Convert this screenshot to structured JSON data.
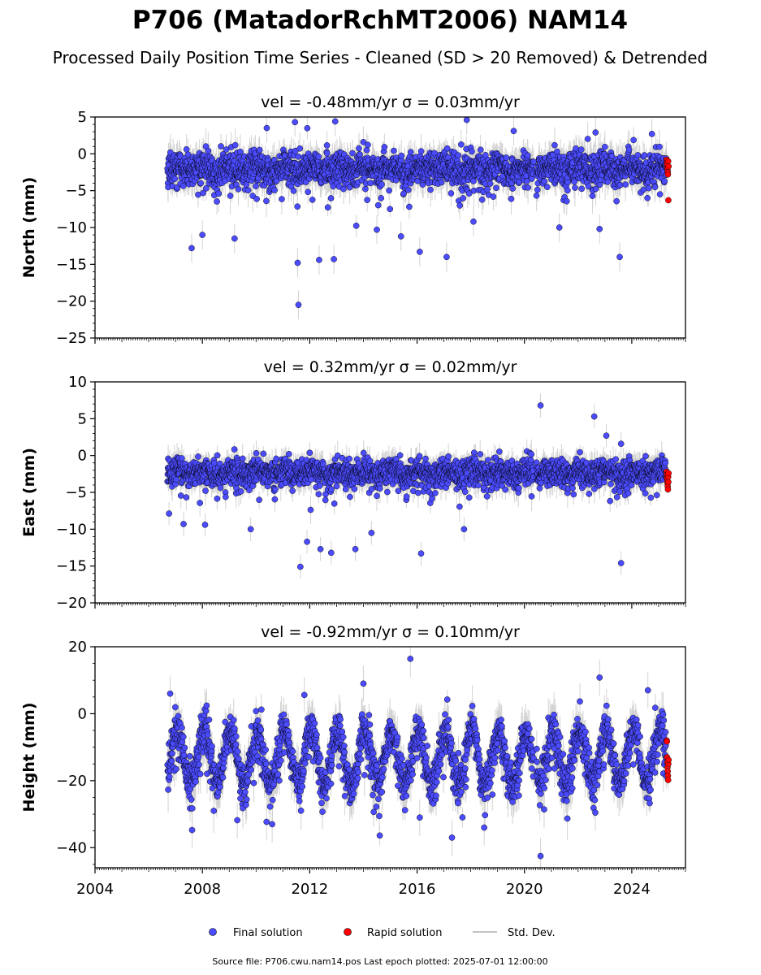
{
  "title": "P706 (MatadorRchMT2006) NAM14",
  "subtitle": "Processed Daily Position Time Series - Cleaned (SD > 20 Removed) & Detrended",
  "legend": {
    "final": "Final solution",
    "rapid": "Rapid solution",
    "std": "Std. Dev."
  },
  "source": "Source file: P706.cwu.nam14.pos  Last epoch plotted: 2025-07-01 12:00:00",
  "colors": {
    "final": "#4b4bff",
    "rapid": "#ff0000",
    "std": "#808080",
    "edge": "#000000"
  },
  "chart_data": [
    {
      "type": "scatter",
      "component": "north",
      "title": "vel = -0.48mm/yr   σ = 0.03mm/yr",
      "ylabel": "North (mm)",
      "xlim": [
        2004.0,
        2026.0
      ],
      "ylim": [
        -25,
        5
      ],
      "yticks": [
        5,
        0,
        -5,
        -10,
        -15,
        -20,
        -25
      ],
      "xticks": [
        2004,
        2008,
        2012,
        2016,
        2020,
        2024
      ],
      "data_start": 2006.7,
      "gap": [
        2020.35,
        2020.45
      ],
      "final_end": 2025.3,
      "rapid_range": [
        2025.3,
        2025.5
      ],
      "baseline": -2.0,
      "scatter_sd": 1.1,
      "seasonal_amplitude": 0.4,
      "outliers": [
        {
          "x": 2011.58,
          "y": -20.5
        },
        {
          "x": 2011.55,
          "y": -14.8
        },
        {
          "x": 2012.35,
          "y": -14.4
        },
        {
          "x": 2012.9,
          "y": -14.3
        },
        {
          "x": 2007.6,
          "y": -12.8
        },
        {
          "x": 2023.55,
          "y": -14.0
        },
        {
          "x": 2017.1,
          "y": -14.0
        },
        {
          "x": 2016.1,
          "y": -13.3
        },
        {
          "x": 2009.2,
          "y": -11.5
        },
        {
          "x": 2011.45,
          "y": 4.3
        },
        {
          "x": 2012.95,
          "y": 4.4
        },
        {
          "x": 2017.85,
          "y": 4.6
        },
        {
          "x": 2010.4,
          "y": 3.5
        },
        {
          "x": 2019.6,
          "y": 3.1
        },
        {
          "x": 2022.65,
          "y": 2.9
        },
        {
          "x": 2024.75,
          "y": 2.7
        },
        {
          "x": 2014.5,
          "y": -10.3
        },
        {
          "x": 2015.4,
          "y": -11.2
        },
        {
          "x": 2018.1,
          "y": -9.2
        },
        {
          "x": 2021.3,
          "y": -10.0
        },
        {
          "x": 2022.8,
          "y": -10.2
        },
        {
          "x": 2008.0,
          "y": -11.0
        }
      ],
      "rapid_values": [
        -0.8,
        -1.2,
        -1.5,
        -1.9,
        -2.2,
        -2.5,
        -2.8,
        -1.0,
        -6.3,
        -1.7
      ]
    },
    {
      "type": "scatter",
      "component": "east",
      "title": "vel = 0.32mm/yr   σ = 0.02mm/yr",
      "ylabel": "East (mm)",
      "xlim": [
        2004.0,
        2026.0
      ],
      "ylim": [
        -20,
        10
      ],
      "yticks": [
        10,
        5,
        0,
        -5,
        -10,
        -15,
        -20
      ],
      "xticks": [
        2004,
        2008,
        2012,
        2016,
        2020,
        2024
      ],
      "data_start": 2006.7,
      "gap": [
        2020.35,
        2020.45
      ],
      "final_end": 2025.3,
      "rapid_range": [
        2025.3,
        2025.5
      ],
      "baseline": -2.3,
      "scatter_sd": 0.9,
      "seasonal_amplitude": 0.3,
      "outliers": [
        {
          "x": 2020.6,
          "y": 6.8
        },
        {
          "x": 2022.6,
          "y": 5.3
        },
        {
          "x": 2023.6,
          "y": -14.6
        },
        {
          "x": 2011.65,
          "y": -15.1
        },
        {
          "x": 2016.15,
          "y": -13.3
        },
        {
          "x": 2013.7,
          "y": -12.7
        },
        {
          "x": 2012.4,
          "y": -12.7
        },
        {
          "x": 2012.8,
          "y": -13.2
        },
        {
          "x": 2011.9,
          "y": -11.7
        },
        {
          "x": 2009.8,
          "y": -10.0
        },
        {
          "x": 2017.75,
          "y": -10.0
        },
        {
          "x": 2014.3,
          "y": -10.5
        },
        {
          "x": 2023.05,
          "y": 2.7
        },
        {
          "x": 2007.3,
          "y": -9.3
        },
        {
          "x": 2023.6,
          "y": 1.6
        },
        {
          "x": 2008.1,
          "y": -9.4
        }
      ],
      "rapid_values": [
        -2.2,
        -2.6,
        -3.0,
        -3.4,
        -3.8,
        -4.2,
        -4.6,
        -2.9,
        -3.6,
        -2.4
      ]
    },
    {
      "type": "scatter",
      "component": "height",
      "title": "vel = -0.92mm/yr   σ = 0.10mm/yr",
      "ylabel": "Height (mm)",
      "xlim": [
        2004.0,
        2026.0
      ],
      "ylim": [
        -46,
        20
      ],
      "yticks": [
        20,
        0,
        -20,
        -40
      ],
      "xticks": [
        2004,
        2008,
        2012,
        2016,
        2020,
        2024
      ],
      "data_start": 2006.7,
      "gap": [
        2020.35,
        2020.45
      ],
      "final_end": 2025.3,
      "rapid_range": [
        2025.3,
        2025.5
      ],
      "baseline": -13.0,
      "scatter_sd": 3.0,
      "seasonal_amplitude": 8.0,
      "outliers": [
        {
          "x": 2015.75,
          "y": 16.4
        },
        {
          "x": 2022.8,
          "y": 10.8
        },
        {
          "x": 2020.6,
          "y": -42.5
        },
        {
          "x": 2017.3,
          "y": -37.0
        },
        {
          "x": 2010.6,
          "y": -33.0
        },
        {
          "x": 2018.5,
          "y": -34.0
        },
        {
          "x": 2009.3,
          "y": -31.8
        },
        {
          "x": 2016.1,
          "y": -31.0
        },
        {
          "x": 2024.6,
          "y": 7.0
        },
        {
          "x": 2014.0,
          "y": 9.0
        },
        {
          "x": 2011.8,
          "y": 5.6
        },
        {
          "x": 2006.8,
          "y": 6.0
        }
      ],
      "rapid_values": [
        -8.0,
        -8.3,
        -13.0,
        -14.5,
        -16.0,
        -17.2,
        -18.5,
        -19.8,
        -15.0,
        -13.8
      ]
    }
  ]
}
